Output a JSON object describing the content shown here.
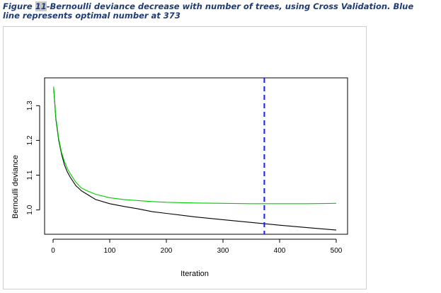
{
  "caption": {
    "figure_label": "Figure ",
    "figure_number": "11",
    "text_line1": "-Bernoulli deviance decrease with number of trees, using Cross Validation.  Blue",
    "text_line2": "line represents optimal number at 373"
  },
  "chart_data": {
    "type": "line",
    "title": "",
    "xlabel": "Iteration",
    "ylabel": "Bernoulli deviance",
    "xlim": [
      0,
      500
    ],
    "ylim": [
      0.93,
      1.38
    ],
    "x_ticks": [
      0,
      100,
      200,
      300,
      400,
      500
    ],
    "y_ticks": [
      1.0,
      1.1,
      1.2,
      1.3
    ],
    "x_tick_labels": [
      "0",
      "100",
      "200",
      "300",
      "400",
      "500"
    ],
    "y_tick_labels": [
      "1.0",
      "1.1",
      "1.2",
      "1.3"
    ],
    "grid": false,
    "series": [
      {
        "color": "#000000",
        "x": [
          1,
          5,
          10,
          15,
          20,
          25,
          30,
          40,
          50,
          60,
          75,
          100,
          125,
          150,
          175,
          200,
          250,
          300,
          350,
          400,
          450,
          500
        ],
        "values": [
          1.35,
          1.26,
          1.2,
          1.16,
          1.13,
          1.11,
          1.095,
          1.07,
          1.055,
          1.045,
          1.03,
          1.018,
          1.01,
          1.003,
          0.995,
          0.99,
          0.98,
          0.972,
          0.964,
          0.956,
          0.949,
          0.942
        ]
      },
      {
        "color": "#00cc00",
        "x": [
          1,
          5,
          10,
          15,
          20,
          25,
          30,
          40,
          50,
          60,
          75,
          100,
          125,
          150,
          175,
          200,
          250,
          300,
          350,
          400,
          450,
          500
        ],
        "values": [
          1.355,
          1.265,
          1.205,
          1.165,
          1.14,
          1.12,
          1.105,
          1.08,
          1.063,
          1.055,
          1.045,
          1.035,
          1.03,
          1.027,
          1.024,
          1.022,
          1.02,
          1.019,
          1.018,
          1.018,
          1.018,
          1.019
        ]
      }
    ],
    "optimal_line": {
      "x": 373,
      "color": "#1a1aff",
      "style": "dashed"
    }
  }
}
